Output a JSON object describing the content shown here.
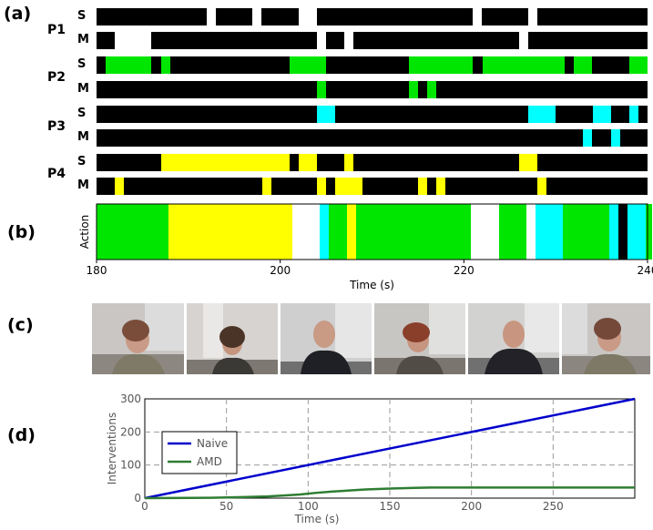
{
  "panels": {
    "a": "(a)",
    "b": "(b)",
    "c": "(c)",
    "d": "(d)"
  },
  "colors": {
    "green": "#00e600",
    "yellow": "#ffff00",
    "cyan": "#00ffff",
    "white": "#ffffff",
    "black": "#000000",
    "naive": "#0000cc",
    "amd": "#2e7d32"
  },
  "chart_data": [
    {
      "type": "timeline",
      "xlim": [
        180,
        240
      ],
      "participants": [
        {
          "name": "P1",
          "rows": [
            {
              "label": "S",
              "segments": [
                [
                  192,
                  193,
                  "white"
                ],
                [
                  197,
                  198,
                  "white"
                ],
                [
                  202,
                  204,
                  "white"
                ],
                [
                  221,
                  222,
                  "white"
                ],
                [
                  227,
                  228,
                  "white"
                ]
              ]
            },
            {
              "label": "M",
              "segments": [
                [
                  182,
                  186,
                  "white"
                ],
                [
                  204,
                  205,
                  "white"
                ],
                [
                  207,
                  208,
                  "white"
                ],
                [
                  226,
                  227,
                  "white"
                ]
              ]
            }
          ]
        },
        {
          "name": "P2",
          "rows": [
            {
              "label": "S",
              "segments": [
                [
                  181,
                  186,
                  "green"
                ],
                [
                  187,
                  188,
                  "green"
                ],
                [
                  201,
                  205,
                  "green"
                ],
                [
                  214,
                  221,
                  "green"
                ],
                [
                  222,
                  231,
                  "green"
                ],
                [
                  232,
                  234,
                  "green"
                ],
                [
                  238,
                  240,
                  "green"
                ]
              ]
            },
            {
              "label": "M",
              "segments": [
                [
                  204,
                  205,
                  "green"
                ],
                [
                  214,
                  215,
                  "green"
                ],
                [
                  216,
                  217,
                  "green"
                ]
              ]
            }
          ]
        },
        {
          "name": "P3",
          "rows": [
            {
              "label": "S",
              "segments": [
                [
                  204,
                  206,
                  "cyan"
                ],
                [
                  227,
                  230,
                  "cyan"
                ],
                [
                  234,
                  236,
                  "cyan"
                ],
                [
                  238,
                  239,
                  "cyan"
                ]
              ]
            },
            {
              "label": "M",
              "segments": [
                [
                  233,
                  234,
                  "cyan"
                ],
                [
                  236,
                  237,
                  "cyan"
                ]
              ]
            }
          ]
        },
        {
          "name": "P4",
          "rows": [
            {
              "label": "S",
              "segments": [
                [
                  187,
                  201,
                  "yellow"
                ],
                [
                  202,
                  204,
                  "yellow"
                ],
                [
                  207,
                  208,
                  "yellow"
                ],
                [
                  226,
                  228,
                  "yellow"
                ]
              ]
            },
            {
              "label": "M",
              "segments": [
                [
                  182,
                  183,
                  "yellow"
                ],
                [
                  198,
                  199,
                  "yellow"
                ],
                [
                  204,
                  205,
                  "yellow"
                ],
                [
                  206,
                  209,
                  "yellow"
                ],
                [
                  215,
                  216,
                  "yellow"
                ],
                [
                  217,
                  218,
                  "yellow"
                ],
                [
                  228,
                  229,
                  "yellow"
                ]
              ]
            }
          ]
        }
      ]
    },
    {
      "type": "timeline",
      "ylabel": "Action",
      "xlabel": "Time (s)",
      "xlim": [
        180,
        240
      ],
      "xticks": [
        180,
        200,
        220,
        240
      ],
      "segments": [
        [
          180,
          187.8,
          "green"
        ],
        [
          187.8,
          201.3,
          "yellow"
        ],
        [
          201.3,
          204.3,
          "white"
        ],
        [
          204.3,
          205.3,
          "cyan"
        ],
        [
          205.3,
          207.3,
          "green"
        ],
        [
          207.3,
          208.3,
          "yellow"
        ],
        [
          208.3,
          220.8,
          "green"
        ],
        [
          220.8,
          223.8,
          "white"
        ],
        [
          223.8,
          226.8,
          "green"
        ],
        [
          226.8,
          227.8,
          "white"
        ],
        [
          227.8,
          230.8,
          "cyan"
        ],
        [
          230.8,
          235.8,
          "green"
        ],
        [
          235.8,
          236.8,
          "cyan"
        ],
        [
          236.8,
          237.8,
          "black"
        ],
        [
          237.8,
          239.8,
          "cyan"
        ],
        [
          239.8,
          240.5,
          "green"
        ]
      ]
    },
    {
      "type": "line",
      "xlabel": "Time (s)",
      "ylabel": "Interventions",
      "xlim": [
        0,
        300
      ],
      "ylim": [
        0,
        300
      ],
      "xticks": [
        0,
        50,
        100,
        150,
        200,
        250
      ],
      "yticks": [
        0,
        100,
        200,
        300
      ],
      "grid": true,
      "legend": "top-left",
      "series": [
        {
          "name": "Naive",
          "color": "naive",
          "x": [
            0,
            300
          ],
          "y": [
            0,
            300
          ]
        },
        {
          "name": "AMD",
          "color": "amd",
          "x": [
            0,
            40,
            60,
            75,
            85,
            95,
            105,
            115,
            125,
            135,
            150,
            165,
            175,
            200,
            250,
            300
          ],
          "y": [
            0,
            1,
            3,
            5,
            8,
            11,
            16,
            20,
            23,
            26,
            29,
            31,
            32,
            32,
            32,
            32
          ]
        }
      ]
    }
  ]
}
